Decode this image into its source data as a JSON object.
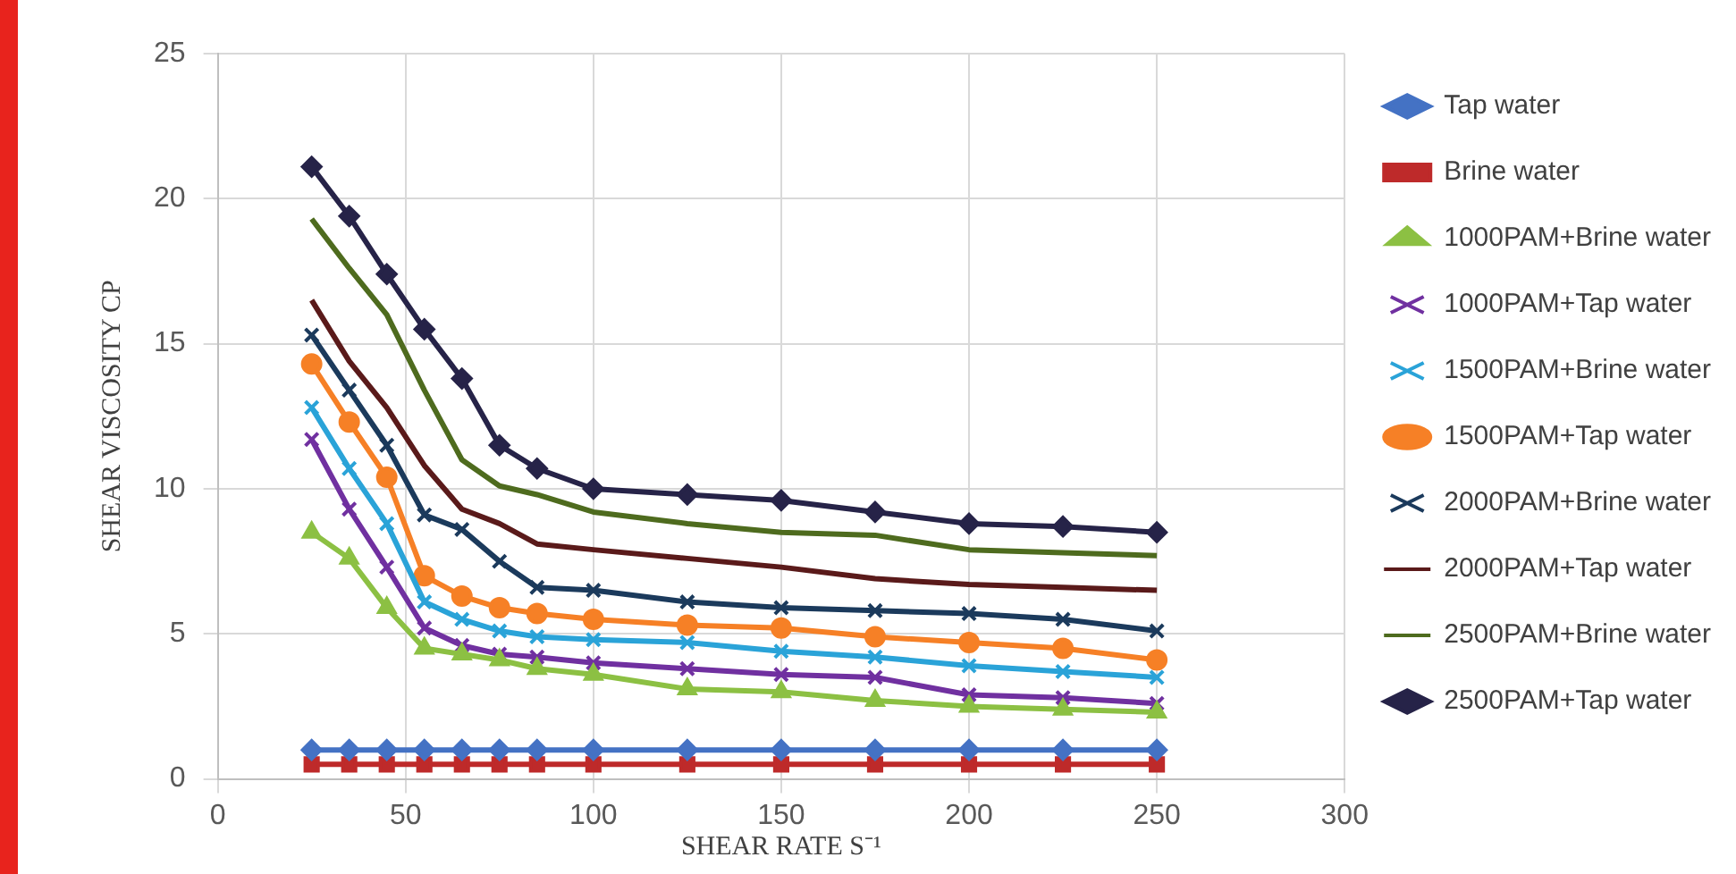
{
  "chart_data": {
    "type": "line",
    "xlabel": "SHEAR RATE S⁻¹",
    "ylabel": "SHEAR VISCOSITY CP",
    "x": [
      25,
      35,
      45,
      55,
      65,
      75,
      85,
      100,
      125,
      150,
      175,
      200,
      225,
      250
    ],
    "xlim": [
      0,
      300
    ],
    "xticks": [
      0,
      50,
      100,
      150,
      200,
      250,
      300
    ],
    "ylim": [
      0,
      25
    ],
    "yticks": [
      0,
      5,
      10,
      15,
      20,
      25
    ],
    "grid": true,
    "legend": "right",
    "line_style": "solid",
    "series": [
      {
        "name": "Tap water",
        "color": "#4472c4",
        "marker": "diamond",
        "values": [
          1.0,
          1.0,
          1.0,
          1.0,
          1.0,
          1.0,
          1.0,
          1.0,
          1.0,
          1.0,
          1.0,
          1.0,
          1.0,
          1.0
        ]
      },
      {
        "name": "Brine water",
        "color": "#be2a2a",
        "marker": "square",
        "values": [
          0.5,
          0.5,
          0.5,
          0.5,
          0.5,
          0.5,
          0.5,
          0.5,
          0.5,
          0.5,
          0.5,
          0.5,
          0.5,
          0.5
        ]
      },
      {
        "name": "1000PAM+Brine water",
        "color": "#8cc043",
        "marker": "triangle",
        "values": [
          8.5,
          7.6,
          5.9,
          4.5,
          4.3,
          4.1,
          3.8,
          3.6,
          3.1,
          3.0,
          2.7,
          2.5,
          2.4,
          2.3
        ]
      },
      {
        "name": "1000PAM+Tap water",
        "color": "#7030a0",
        "marker": "cross",
        "values": [
          11.7,
          9.3,
          7.3,
          5.2,
          4.6,
          4.3,
          4.2,
          4.0,
          3.8,
          3.6,
          3.5,
          2.9,
          2.8,
          2.6
        ]
      },
      {
        "name": "1500PAM+Brine water",
        "color": "#2aa3d8",
        "marker": "cross",
        "values": [
          12.8,
          10.7,
          8.8,
          6.1,
          5.5,
          5.1,
          4.9,
          4.8,
          4.7,
          4.4,
          4.2,
          3.9,
          3.7,
          3.5
        ]
      },
      {
        "name": "1500PAM+Tap water",
        "color": "#f68026",
        "marker": "circle",
        "values": [
          14.3,
          12.3,
          10.4,
          7.0,
          6.3,
          5.9,
          5.7,
          5.5,
          5.3,
          5.2,
          4.9,
          4.7,
          4.5,
          4.1
        ]
      },
      {
        "name": "2000PAM+Brine water",
        "color": "#1b3a5c",
        "marker": "cross",
        "values": [
          15.3,
          13.4,
          11.5,
          9.1,
          8.6,
          7.5,
          6.6,
          6.5,
          6.1,
          5.9,
          5.8,
          5.7,
          5.5,
          5.1
        ]
      },
      {
        "name": "2000PAM+Tap water",
        "color": "#5a1a1a",
        "marker": "none",
        "values": [
          16.5,
          14.4,
          12.8,
          10.8,
          9.3,
          8.8,
          8.1,
          7.9,
          7.6,
          7.3,
          6.9,
          6.7,
          6.6,
          6.5
        ]
      },
      {
        "name": "2500PAM+Brine water",
        "color": "#4e6b1e",
        "marker": "none",
        "values": [
          19.3,
          17.6,
          16.0,
          13.4,
          11.0,
          10.1,
          9.8,
          9.2,
          8.8,
          8.5,
          8.4,
          7.9,
          7.8,
          7.7
        ]
      },
      {
        "name": "2500PAM+Tap water",
        "color": "#262348",
        "marker": "diamond",
        "values": [
          21.1,
          19.4,
          17.4,
          15.5,
          13.8,
          11.5,
          10.7,
          10.0,
          9.8,
          9.6,
          9.2,
          8.8,
          8.7,
          8.5
        ]
      }
    ]
  }
}
